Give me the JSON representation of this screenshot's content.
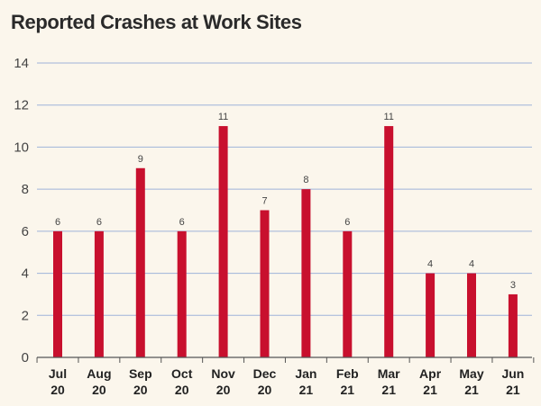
{
  "colors": {
    "background": "#fbf6ec",
    "bar": "#c8102e",
    "gridline": "#9fb3d9",
    "axis": "#555555"
  },
  "chart_data": {
    "type": "bar",
    "title": "Reported Crashes at Work Sites",
    "xlabel": "",
    "ylabel": "",
    "ylim": [
      0,
      14
    ],
    "yticks": [
      0,
      2,
      4,
      6,
      8,
      10,
      12,
      14
    ],
    "grid": true,
    "categories": [
      [
        "Jul",
        "20"
      ],
      [
        "Aug",
        "20"
      ],
      [
        "Sep",
        "20"
      ],
      [
        "Oct",
        "20"
      ],
      [
        "Nov",
        "20"
      ],
      [
        "Dec",
        "20"
      ],
      [
        "Jan",
        "21"
      ],
      [
        "Feb",
        "21"
      ],
      [
        "Mar",
        "21"
      ],
      [
        "Apr",
        "21"
      ],
      [
        "May",
        "21"
      ],
      [
        "Jun",
        "21"
      ]
    ],
    "values": [
      6,
      6,
      9,
      6,
      11,
      7,
      8,
      6,
      11,
      4,
      4,
      3
    ]
  }
}
